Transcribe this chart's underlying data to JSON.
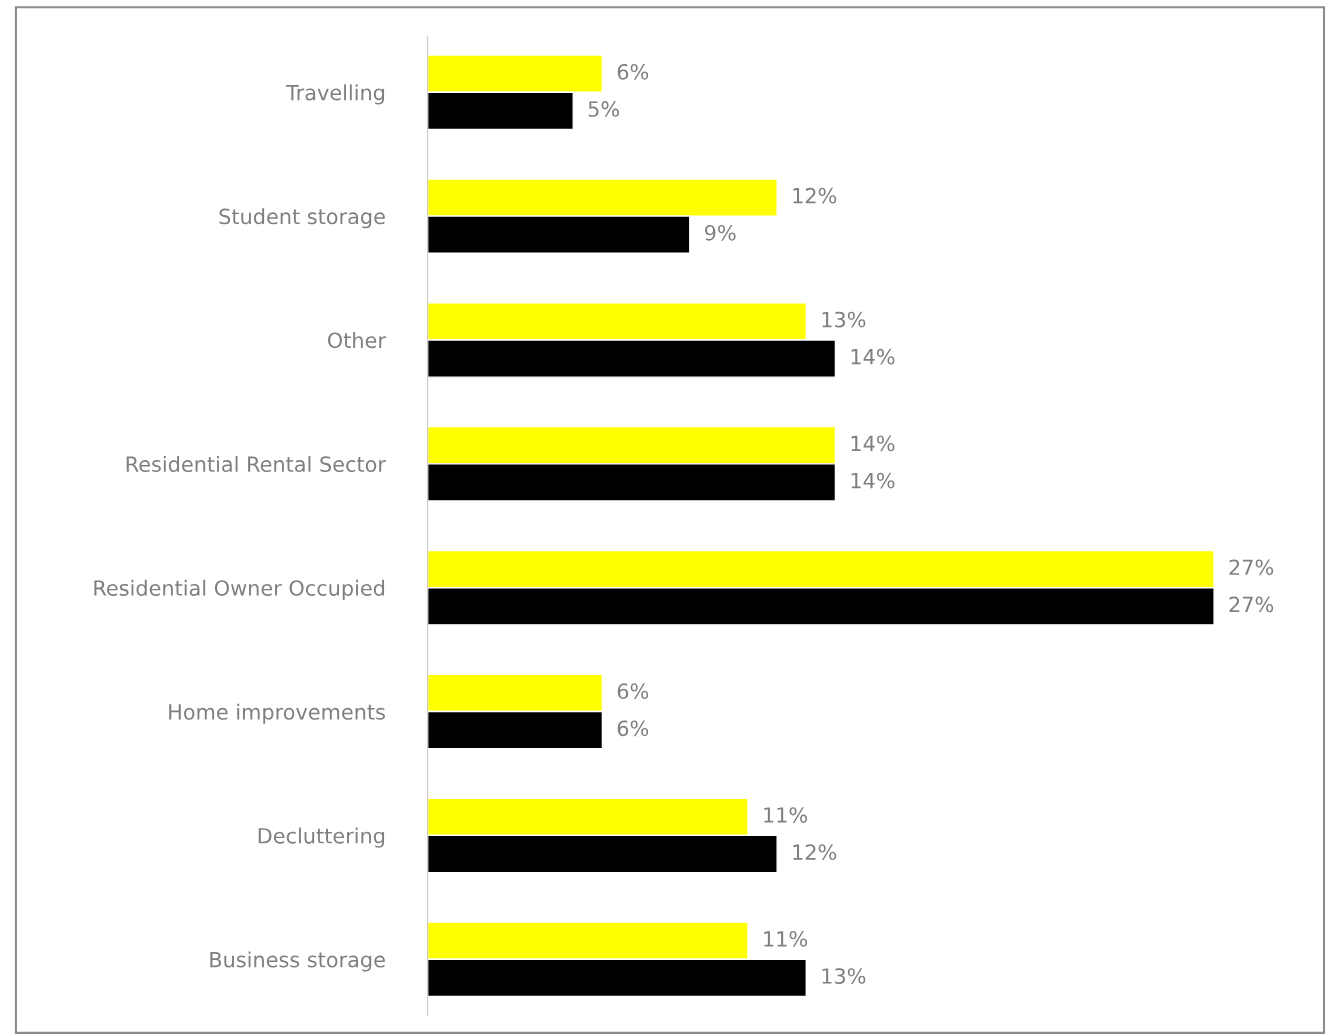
{
  "chart_data": {
    "type": "bar",
    "orientation": "horizontal",
    "tick_labels": "y",
    "categories": [
      "Travelling",
      "Student storage",
      "Other",
      "Residential Rental Sector",
      "Residential Owner Occupied",
      "Home improvements",
      "Decluttering",
      "Business storage"
    ],
    "series": [
      {
        "color": "#ffff00",
        "values": [
          6,
          12,
          13,
          14,
          27,
          6,
          11,
          11
        ],
        "value_labels": [
          "6%",
          "12%",
          "13%",
          "14%",
          "27%",
          "6%",
          "11%",
          "11%"
        ]
      },
      {
        "color": "#000000",
        "values": [
          5,
          9,
          14,
          14,
          27,
          6,
          12,
          13
        ],
        "value_labels": [
          "5%",
          "9%",
          "14%",
          "14%",
          "27%",
          "6%",
          "12%",
          "13%"
        ]
      }
    ]
  }
}
